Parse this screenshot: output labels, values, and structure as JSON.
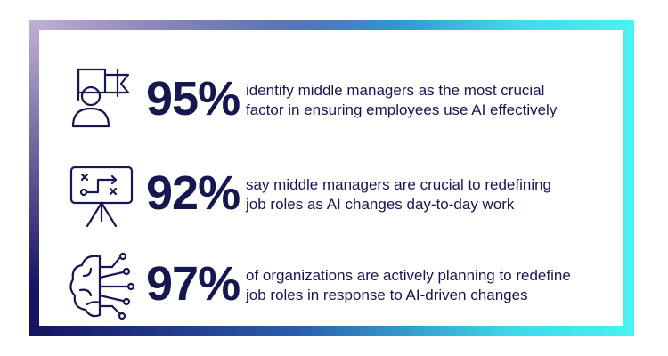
{
  "items": [
    {
      "stat": "95%",
      "lines": [
        "identify middle managers as the most crucial",
        "factor in ensuring employees use AI effectively"
      ]
    },
    {
      "stat": "92%",
      "lines": [
        "say middle managers are crucial to redefining",
        "job roles as AI changes day-to-day work"
      ]
    },
    {
      "stat": "97%",
      "lines": [
        "of organizations are actively planning to redefine",
        "job roles in response to AI-driven changes"
      ]
    }
  ]
}
